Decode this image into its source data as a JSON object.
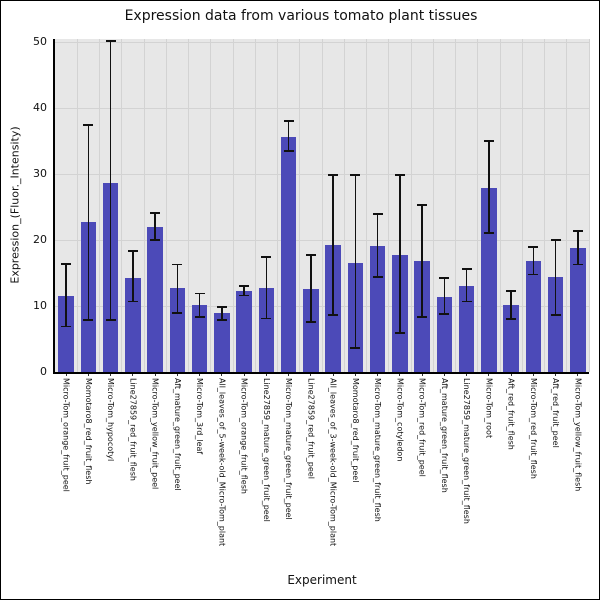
{
  "figure": {
    "background": "#ffffff",
    "border_color": "#000000"
  },
  "chart_data": {
    "type": "bar",
    "title": "Expression data from various tomato plant tissues",
    "xlabel": "Experiment",
    "ylabel": "Expression_(Fluor._Intensity)",
    "ylim": [
      0,
      50.5
    ],
    "yticks": [
      0,
      10,
      20,
      30,
      40,
      50
    ],
    "grid": true,
    "legend_position": "none",
    "bar_color": "#4c4ab8",
    "error_color": "#111111",
    "panel_color": "#e7e7e7",
    "grid_color": "#d3d3d3",
    "categories": [
      "Micro-Tom_orange_fruit_peel",
      "Momotaro8_red_fruit_flesh",
      "Micro-Tom_hypocotyl",
      "Line27859_red_fruit_flesh",
      "Micro-Tom_yellow_fruit_peel",
      "Aft_mature_green_fruit_peel",
      "Micro-Tom_3rd_leaf",
      "All_leaves_of_5-week-old_Micro-Tom_plant",
      "Micro-Tom_orange_fruit_flesh",
      "Line27859_mature_green_fruit_peel",
      "Micro-Tom_mature_green_fruit_peel",
      "Line27859_red_fruit_peel",
      "All_leaves_of_3-week-old_Micro-Tom_plant",
      "Momotaro8_red_fruit_peel",
      "Micro-Tom_mature_green_fruit_flesh",
      "Micro-Tom_cotyledon",
      "Micro-Tom_red_fruit_peel",
      "Aft_mature_green_fruit_flesh",
      "Line27859_mature_green_fruit_flesh",
      "Micro-Tom_root",
      "Aft_red_fruit_flesh",
      "Micro-Tom_red_fruit_flesh",
      "Aft_red_fruit_peel",
      "Micro-Tom_yellow_fruit_flesh"
    ],
    "values": [
      11.6,
      22.7,
      28.6,
      14.3,
      22.0,
      12.7,
      10.2,
      8.9,
      12.3,
      12.7,
      35.7,
      12.6,
      19.3,
      16.6,
      19.1,
      17.7,
      16.8,
      11.3,
      13.1,
      27.9,
      10.2,
      16.9,
      14.4,
      18.8
    ],
    "error_low": [
      6.9,
      7.9,
      7.9,
      10.7,
      20.0,
      8.9,
      8.4,
      7.9,
      11.6,
      8.1,
      33.5,
      7.6,
      8.7,
      3.6,
      14.4,
      5.9,
      8.4,
      8.8,
      10.7,
      21.1,
      8.0,
      14.8,
      8.7,
      16.3
    ],
    "error_high": [
      16.4,
      37.5,
      50.2,
      18.3,
      24.1,
      16.3,
      11.9,
      9.9,
      13.0,
      17.5,
      38.1,
      17.7,
      29.9,
      29.9,
      24.0,
      29.9,
      25.3,
      14.2,
      15.6,
      35.0,
      12.3,
      19.0,
      20.0,
      21.4
    ]
  }
}
